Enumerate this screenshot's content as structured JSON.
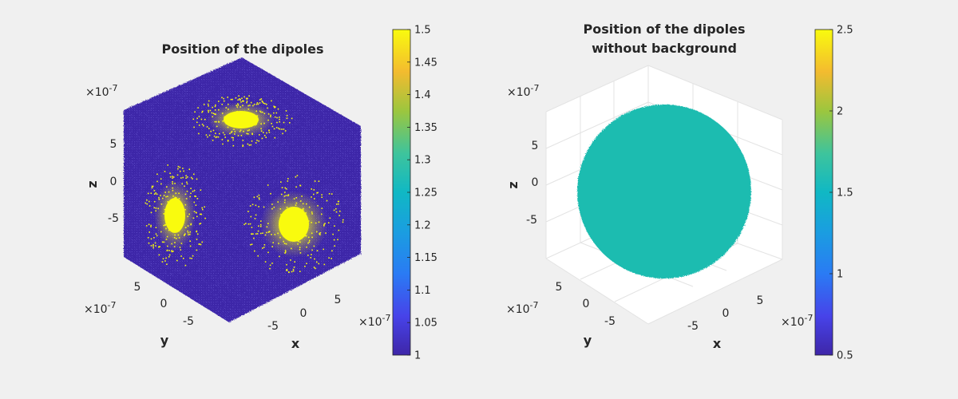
{
  "colors": {
    "background": "#f0f0f0",
    "low": "#3e26a8",
    "high": "#f9fb0e",
    "uniform": "#1ebcb0",
    "box_edge": "#d9d9d9"
  },
  "chart_data": [
    {
      "type": "scatter3d",
      "title": [
        "Position of the dipoles"
      ],
      "xlabel": "x",
      "ylabel": "y",
      "zlabel": "z",
      "xticks": [
        "-5",
        "0",
        "5"
      ],
      "yticks": [
        "-5",
        "0",
        "5"
      ],
      "zticks": [
        "5",
        "0",
        "-5"
      ],
      "axis_exponent": "×10",
      "axis_exponent_power": "-7",
      "xlim": [
        -1e-06,
        1e-06
      ],
      "ylim": [
        -1e-06,
        1e-06
      ],
      "zlim": [
        -1e-06,
        1e-06
      ],
      "grid": false,
      "colorbar": {
        "min": 1,
        "max": 1.5,
        "colormap": "parula",
        "ticks": [
          "1.5",
          "1.45",
          "1.4",
          "1.35",
          "1.3",
          "1.25",
          "1.2",
          "1.15",
          "1.1",
          "1.05",
          "1"
        ],
        "tick_values": [
          1.5,
          1.45,
          1.4,
          1.35,
          1.3,
          1.25,
          1.2,
          1.15,
          1.1,
          1.05,
          1
        ]
      },
      "data_summary": {
        "background_value": 1,
        "inclusion_value": 1.5,
        "inclusions": "three yellow clusters on the top, left and right faces of a cube filled with value-1 dipoles"
      }
    },
    {
      "type": "scatter3d",
      "title": [
        "Position of the dipoles",
        "without background"
      ],
      "xlabel": "x",
      "ylabel": "y",
      "zlabel": "z",
      "xticks": [
        "-5",
        "0",
        "5"
      ],
      "yticks": [
        "-5",
        "0",
        "5"
      ],
      "zticks": [
        "5",
        "0",
        "-5"
      ],
      "axis_exponent": "×10",
      "axis_exponent_power": "-7",
      "xlim": [
        -1e-06,
        1e-06
      ],
      "ylim": [
        -1e-06,
        1e-06
      ],
      "zlim": [
        -1e-06,
        1e-06
      ],
      "grid": true,
      "colorbar": {
        "min": 0.5,
        "max": 2.5,
        "colormap": "parula",
        "ticks": [
          "2.5",
          "2",
          "1.5",
          "1",
          "0.5"
        ],
        "tick_values": [
          2.5,
          2,
          1.5,
          1,
          0.5
        ]
      },
      "data_summary": {
        "uniform_value": 1.5,
        "shape": "sphere of dipoles"
      }
    }
  ]
}
